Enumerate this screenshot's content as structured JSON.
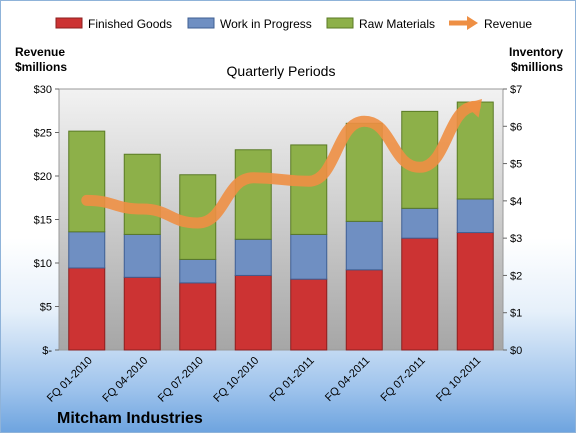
{
  "chart_data": {
    "type": "bar",
    "stacked": true,
    "subtitle": "Quarterly Periods",
    "company": "Mitcham Industries",
    "left_axis": {
      "label_line1": "Revenue",
      "label_line2": "$millions",
      "range": [
        0,
        30
      ],
      "ticks": [
        "$-",
        "$5",
        "$10",
        "$15",
        "$20",
        "$25",
        "$30"
      ]
    },
    "right_axis": {
      "label_line1": "Inventory",
      "label_line2": "$millions",
      "range": [
        0,
        7
      ],
      "ticks": [
        "$0",
        "$1",
        "$2",
        "$3",
        "$4",
        "$5",
        "$6",
        "$7"
      ]
    },
    "categories": [
      "FQ 01-2010",
      "FQ 04-2010",
      "FQ 07-2010",
      "FQ 10-2010",
      "FQ 01-2011",
      "FQ 04-2011",
      "FQ 07-2011",
      "FQ 10-2011"
    ],
    "series": [
      {
        "name": "Finished Goods",
        "axis": "right",
        "color": "#cc3333",
        "values": [
          2.2,
          1.95,
          1.8,
          2.0,
          1.9,
          2.15,
          3.0,
          3.15
        ]
      },
      {
        "name": "Work in Progress",
        "axis": "right",
        "color": "#6f8fc2",
        "values": [
          0.97,
          1.15,
          0.63,
          0.97,
          1.2,
          1.3,
          0.8,
          0.9
        ]
      },
      {
        "name": "Raw Materials",
        "axis": "right",
        "color": "#8db049",
        "values": [
          2.7,
          2.15,
          2.27,
          2.4,
          2.4,
          2.63,
          2.6,
          2.6
        ]
      },
      {
        "name": "Revenue",
        "axis": "left",
        "type": "line",
        "color": "#ee8f44",
        "values": [
          17.2,
          16.2,
          14.6,
          19.8,
          19.4,
          26.3,
          21.0,
          28.0
        ]
      }
    ],
    "grid": false,
    "legend_position": "top"
  }
}
